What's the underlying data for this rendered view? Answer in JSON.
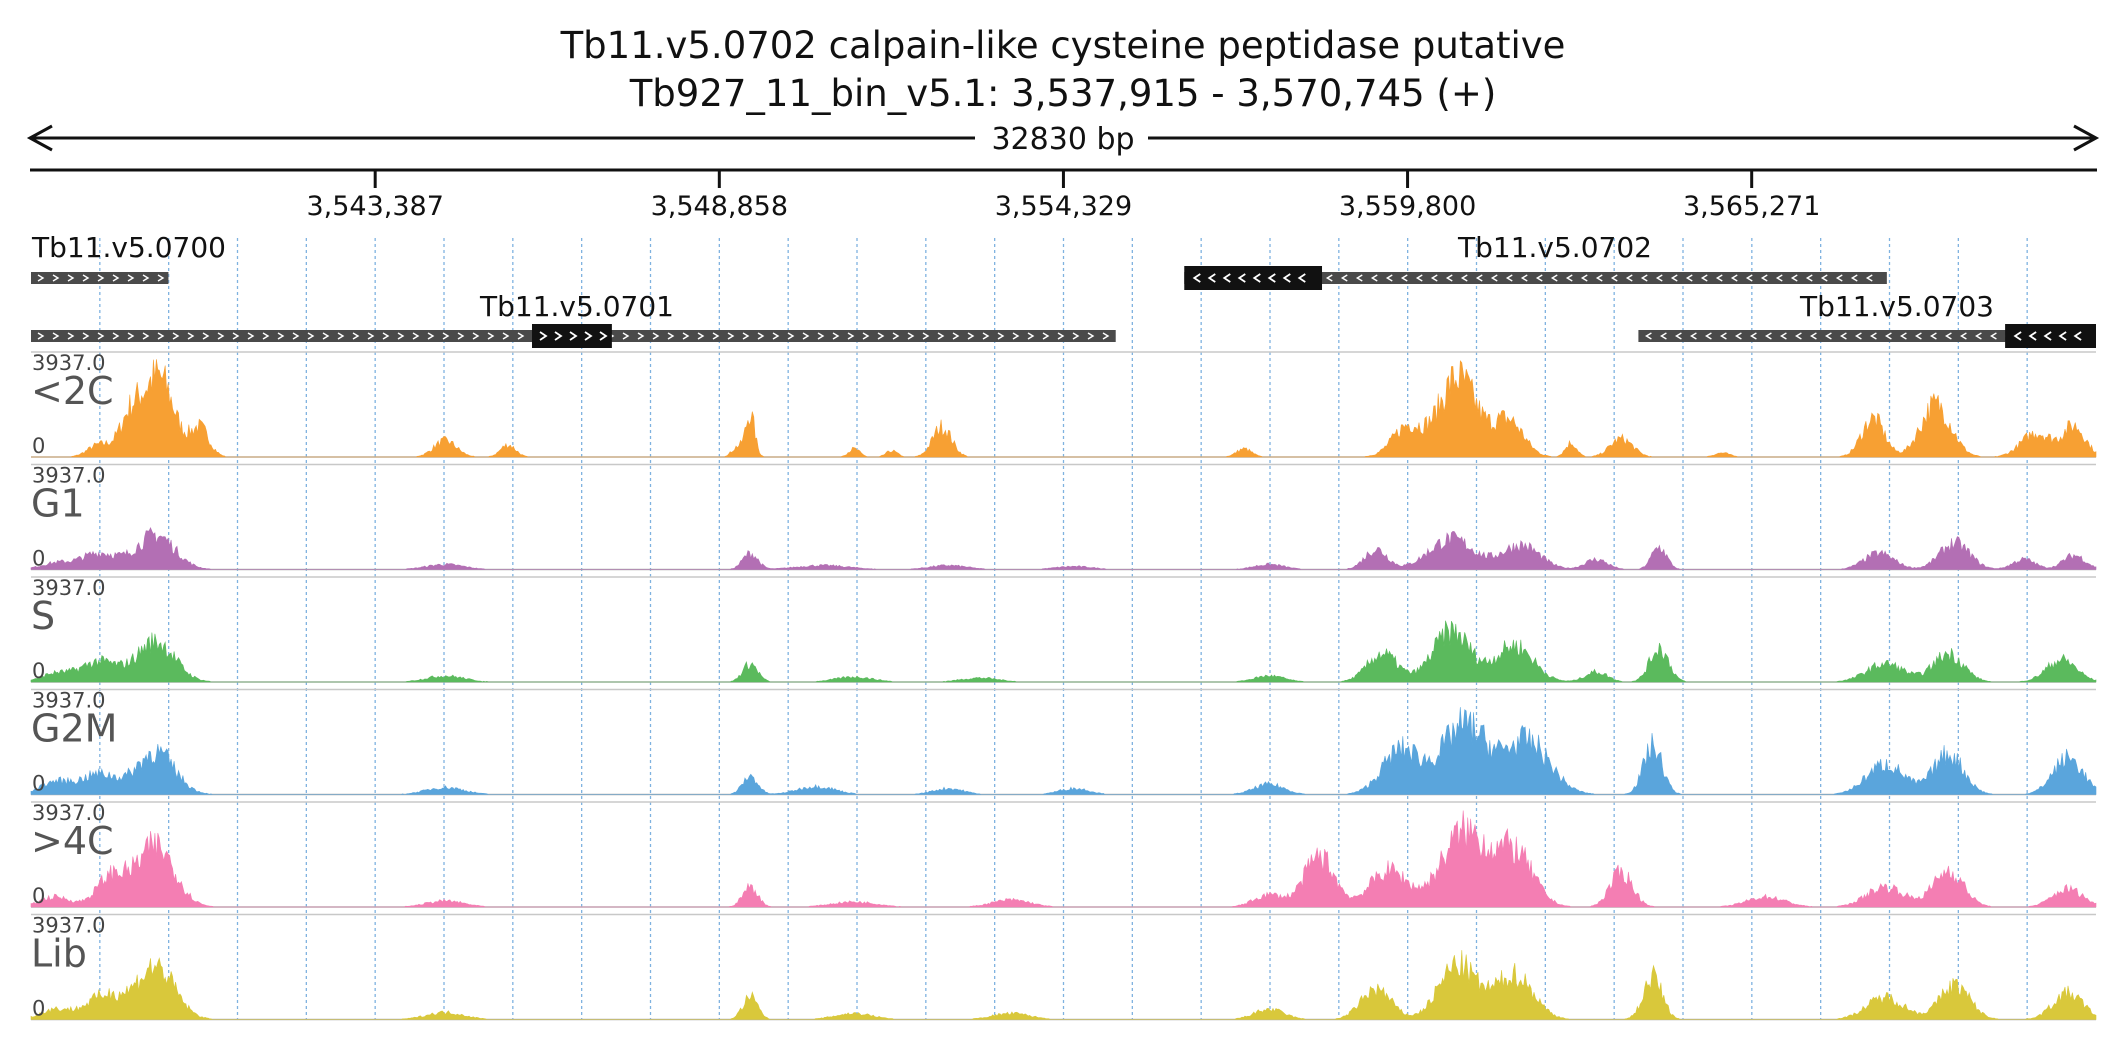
{
  "chart_data": {
    "type": "area",
    "title": "Tb11.v5.0702  calpain-like cysteine peptidase  putative",
    "subtitle": "Tb927_11_bin_v5.1: 3,537,915 - 3,570,745 (+)",
    "span_label": "32830 bp",
    "region": {
      "chrom": "Tb927_11_bin_v5.1",
      "start": 3537915,
      "end": 3570745,
      "strand": "+"
    },
    "x_ticks": [
      {
        "pos": 3543387,
        "label": "3,543,387"
      },
      {
        "pos": 3548858,
        "label": "3,548,858"
      },
      {
        "pos": 3554329,
        "label": "3,554,329"
      },
      {
        "pos": 3559800,
        "label": "3,559,800"
      },
      {
        "pos": 3565271,
        "label": "3,565,271"
      }
    ],
    "genes": [
      {
        "name": "Tb11.v5.0700",
        "start": 3537915,
        "end": 3540100,
        "strand": "+",
        "row": 0,
        "cds": []
      },
      {
        "name": "Tb11.v5.0701",
        "start": 3537915,
        "end": 3555160,
        "strand": "+",
        "row": 1,
        "cds": [
          [
            3545880,
            3547150
          ]
        ]
      },
      {
        "name": "Tb11.v5.0702",
        "start": 3556250,
        "end": 3567420,
        "strand": "-",
        "row": 0,
        "cds": [
          [
            3556250,
            3558440
          ]
        ]
      },
      {
        "name": "Tb11.v5.0703",
        "start": 3563470,
        "end": 3570745,
        "strand": "-",
        "row": 1,
        "cds": [
          [
            3569300,
            3570745
          ]
        ]
      }
    ],
    "tracks": [
      {
        "name": "<2C",
        "color": "#f7a033",
        "scale_max": "3937.0",
        "scale_min": "0",
        "ymax": 3937.0,
        "peaks": [
          {
            "x": 3539950,
            "h": 3937,
            "w": 400
          },
          {
            "x": 3539500,
            "h": 1900,
            "w": 300
          },
          {
            "x": 3540600,
            "h": 1400,
            "w": 250
          },
          {
            "x": 3539000,
            "h": 600,
            "w": 300
          },
          {
            "x": 3544500,
            "h": 800,
            "w": 300
          },
          {
            "x": 3545500,
            "h": 600,
            "w": 200
          },
          {
            "x": 3549350,
            "h": 2100,
            "w": 120
          },
          {
            "x": 3549150,
            "h": 500,
            "w": 150
          },
          {
            "x": 3551000,
            "h": 400,
            "w": 150
          },
          {
            "x": 3551600,
            "h": 300,
            "w": 150
          },
          {
            "x": 3552400,
            "h": 1500,
            "w": 250
          },
          {
            "x": 3557200,
            "h": 400,
            "w": 200
          },
          {
            "x": 3559800,
            "h": 1500,
            "w": 400
          },
          {
            "x": 3560600,
            "h": 3937,
            "w": 500
          },
          {
            "x": 3561400,
            "h": 1800,
            "w": 400
          },
          {
            "x": 3562400,
            "h": 700,
            "w": 150
          },
          {
            "x": 3563200,
            "h": 900,
            "w": 300
          },
          {
            "x": 3564800,
            "h": 200,
            "w": 200
          },
          {
            "x": 3567200,
            "h": 1900,
            "w": 300
          },
          {
            "x": 3568200,
            "h": 2600,
            "w": 400
          },
          {
            "x": 3569800,
            "h": 1200,
            "w": 400
          },
          {
            "x": 3570400,
            "h": 1500,
            "w": 300
          }
        ]
      },
      {
        "name": "G1",
        "color": "#b36fb4",
        "scale_max": "3937.0",
        "scale_min": "0",
        "ymax": 3937.0,
        "peaks": [
          {
            "x": 3539900,
            "h": 1700,
            "w": 500
          },
          {
            "x": 3539000,
            "h": 800,
            "w": 500
          },
          {
            "x": 3538300,
            "h": 300,
            "w": 400
          },
          {
            "x": 3544500,
            "h": 250,
            "w": 500
          },
          {
            "x": 3549350,
            "h": 800,
            "w": 200
          },
          {
            "x": 3550500,
            "h": 200,
            "w": 700
          },
          {
            "x": 3552500,
            "h": 200,
            "w": 500
          },
          {
            "x": 3554500,
            "h": 150,
            "w": 500
          },
          {
            "x": 3557600,
            "h": 250,
            "w": 400
          },
          {
            "x": 3559300,
            "h": 1000,
            "w": 300
          },
          {
            "x": 3560500,
            "h": 1500,
            "w": 600
          },
          {
            "x": 3561600,
            "h": 1200,
            "w": 500
          },
          {
            "x": 3562800,
            "h": 500,
            "w": 300
          },
          {
            "x": 3563800,
            "h": 1100,
            "w": 200
          },
          {
            "x": 3567300,
            "h": 800,
            "w": 400
          },
          {
            "x": 3568500,
            "h": 1300,
            "w": 400
          },
          {
            "x": 3569600,
            "h": 500,
            "w": 300
          },
          {
            "x": 3570400,
            "h": 700,
            "w": 300
          }
        ]
      },
      {
        "name": "S",
        "color": "#5bba5d",
        "scale_max": "3937.0",
        "scale_min": "0",
        "ymax": 3937.0,
        "peaks": [
          {
            "x": 3539900,
            "h": 2000,
            "w": 500
          },
          {
            "x": 3539000,
            "h": 1000,
            "w": 500
          },
          {
            "x": 3538300,
            "h": 400,
            "w": 400
          },
          {
            "x": 3544500,
            "h": 300,
            "w": 500
          },
          {
            "x": 3549350,
            "h": 900,
            "w": 200
          },
          {
            "x": 3551000,
            "h": 250,
            "w": 500
          },
          {
            "x": 3553000,
            "h": 200,
            "w": 500
          },
          {
            "x": 3557600,
            "h": 300,
            "w": 400
          },
          {
            "x": 3559400,
            "h": 1400,
            "w": 400
          },
          {
            "x": 3560500,
            "h": 2500,
            "w": 500
          },
          {
            "x": 3561500,
            "h": 1800,
            "w": 500
          },
          {
            "x": 3562800,
            "h": 500,
            "w": 300
          },
          {
            "x": 3563800,
            "h": 1700,
            "w": 250
          },
          {
            "x": 3567400,
            "h": 900,
            "w": 500
          },
          {
            "x": 3568400,
            "h": 1400,
            "w": 400
          },
          {
            "x": 3570200,
            "h": 1100,
            "w": 400
          }
        ]
      },
      {
        "name": "G2M",
        "color": "#5aa5dc",
        "scale_max": "3937.0",
        "scale_min": "0",
        "ymax": 3937.0,
        "peaks": [
          {
            "x": 3539900,
            "h": 2100,
            "w": 500
          },
          {
            "x": 3539000,
            "h": 1000,
            "w": 500
          },
          {
            "x": 3538300,
            "h": 600,
            "w": 400
          },
          {
            "x": 3544500,
            "h": 350,
            "w": 500
          },
          {
            "x": 3549350,
            "h": 900,
            "w": 200
          },
          {
            "x": 3550400,
            "h": 400,
            "w": 500
          },
          {
            "x": 3552500,
            "h": 300,
            "w": 400
          },
          {
            "x": 3554500,
            "h": 300,
            "w": 400
          },
          {
            "x": 3557600,
            "h": 500,
            "w": 400
          },
          {
            "x": 3559700,
            "h": 2200,
            "w": 500
          },
          {
            "x": 3560700,
            "h": 3400,
            "w": 600
          },
          {
            "x": 3561700,
            "h": 2600,
            "w": 600
          },
          {
            "x": 3563700,
            "h": 2400,
            "w": 250
          },
          {
            "x": 3567400,
            "h": 1500,
            "w": 500
          },
          {
            "x": 3568400,
            "h": 2000,
            "w": 400
          },
          {
            "x": 3570300,
            "h": 1800,
            "w": 400
          }
        ]
      },
      {
        "name": ">4C",
        "color": "#f47eb3",
        "scale_max": "3937.0",
        "scale_min": "0",
        "ymax": 3937.0,
        "peaks": [
          {
            "x": 3539900,
            "h": 3000,
            "w": 500
          },
          {
            "x": 3539200,
            "h": 1500,
            "w": 400
          },
          {
            "x": 3538300,
            "h": 500,
            "w": 400
          },
          {
            "x": 3544500,
            "h": 300,
            "w": 500
          },
          {
            "x": 3549350,
            "h": 1000,
            "w": 200
          },
          {
            "x": 3551000,
            "h": 250,
            "w": 600
          },
          {
            "x": 3553500,
            "h": 350,
            "w": 500
          },
          {
            "x": 3557600,
            "h": 600,
            "w": 400
          },
          {
            "x": 3558400,
            "h": 2500,
            "w": 400
          },
          {
            "x": 3559500,
            "h": 1800,
            "w": 500
          },
          {
            "x": 3560700,
            "h": 3700,
            "w": 600
          },
          {
            "x": 3561500,
            "h": 2600,
            "w": 500
          },
          {
            "x": 3563200,
            "h": 1700,
            "w": 300
          },
          {
            "x": 3565500,
            "h": 500,
            "w": 500
          },
          {
            "x": 3567400,
            "h": 1000,
            "w": 500
          },
          {
            "x": 3568400,
            "h": 1800,
            "w": 400
          },
          {
            "x": 3570300,
            "h": 900,
            "w": 400
          }
        ]
      },
      {
        "name": "Lib",
        "color": "#d9c83b",
        "scale_max": "3937.0",
        "scale_min": "0",
        "ymax": 3937.0,
        "peaks": [
          {
            "x": 3539900,
            "h": 2600,
            "w": 500
          },
          {
            "x": 3539100,
            "h": 1200,
            "w": 500
          },
          {
            "x": 3538300,
            "h": 500,
            "w": 400
          },
          {
            "x": 3544500,
            "h": 350,
            "w": 500
          },
          {
            "x": 3549350,
            "h": 1100,
            "w": 200
          },
          {
            "x": 3551000,
            "h": 300,
            "w": 500
          },
          {
            "x": 3553500,
            "h": 300,
            "w": 500
          },
          {
            "x": 3557600,
            "h": 500,
            "w": 400
          },
          {
            "x": 3559300,
            "h": 1500,
            "w": 400
          },
          {
            "x": 3560600,
            "h": 2700,
            "w": 500
          },
          {
            "x": 3561500,
            "h": 2200,
            "w": 500
          },
          {
            "x": 3563700,
            "h": 2100,
            "w": 250
          },
          {
            "x": 3567400,
            "h": 1100,
            "w": 500
          },
          {
            "x": 3568500,
            "h": 1700,
            "w": 400
          },
          {
            "x": 3570300,
            "h": 1300,
            "w": 400
          }
        ]
      }
    ]
  }
}
